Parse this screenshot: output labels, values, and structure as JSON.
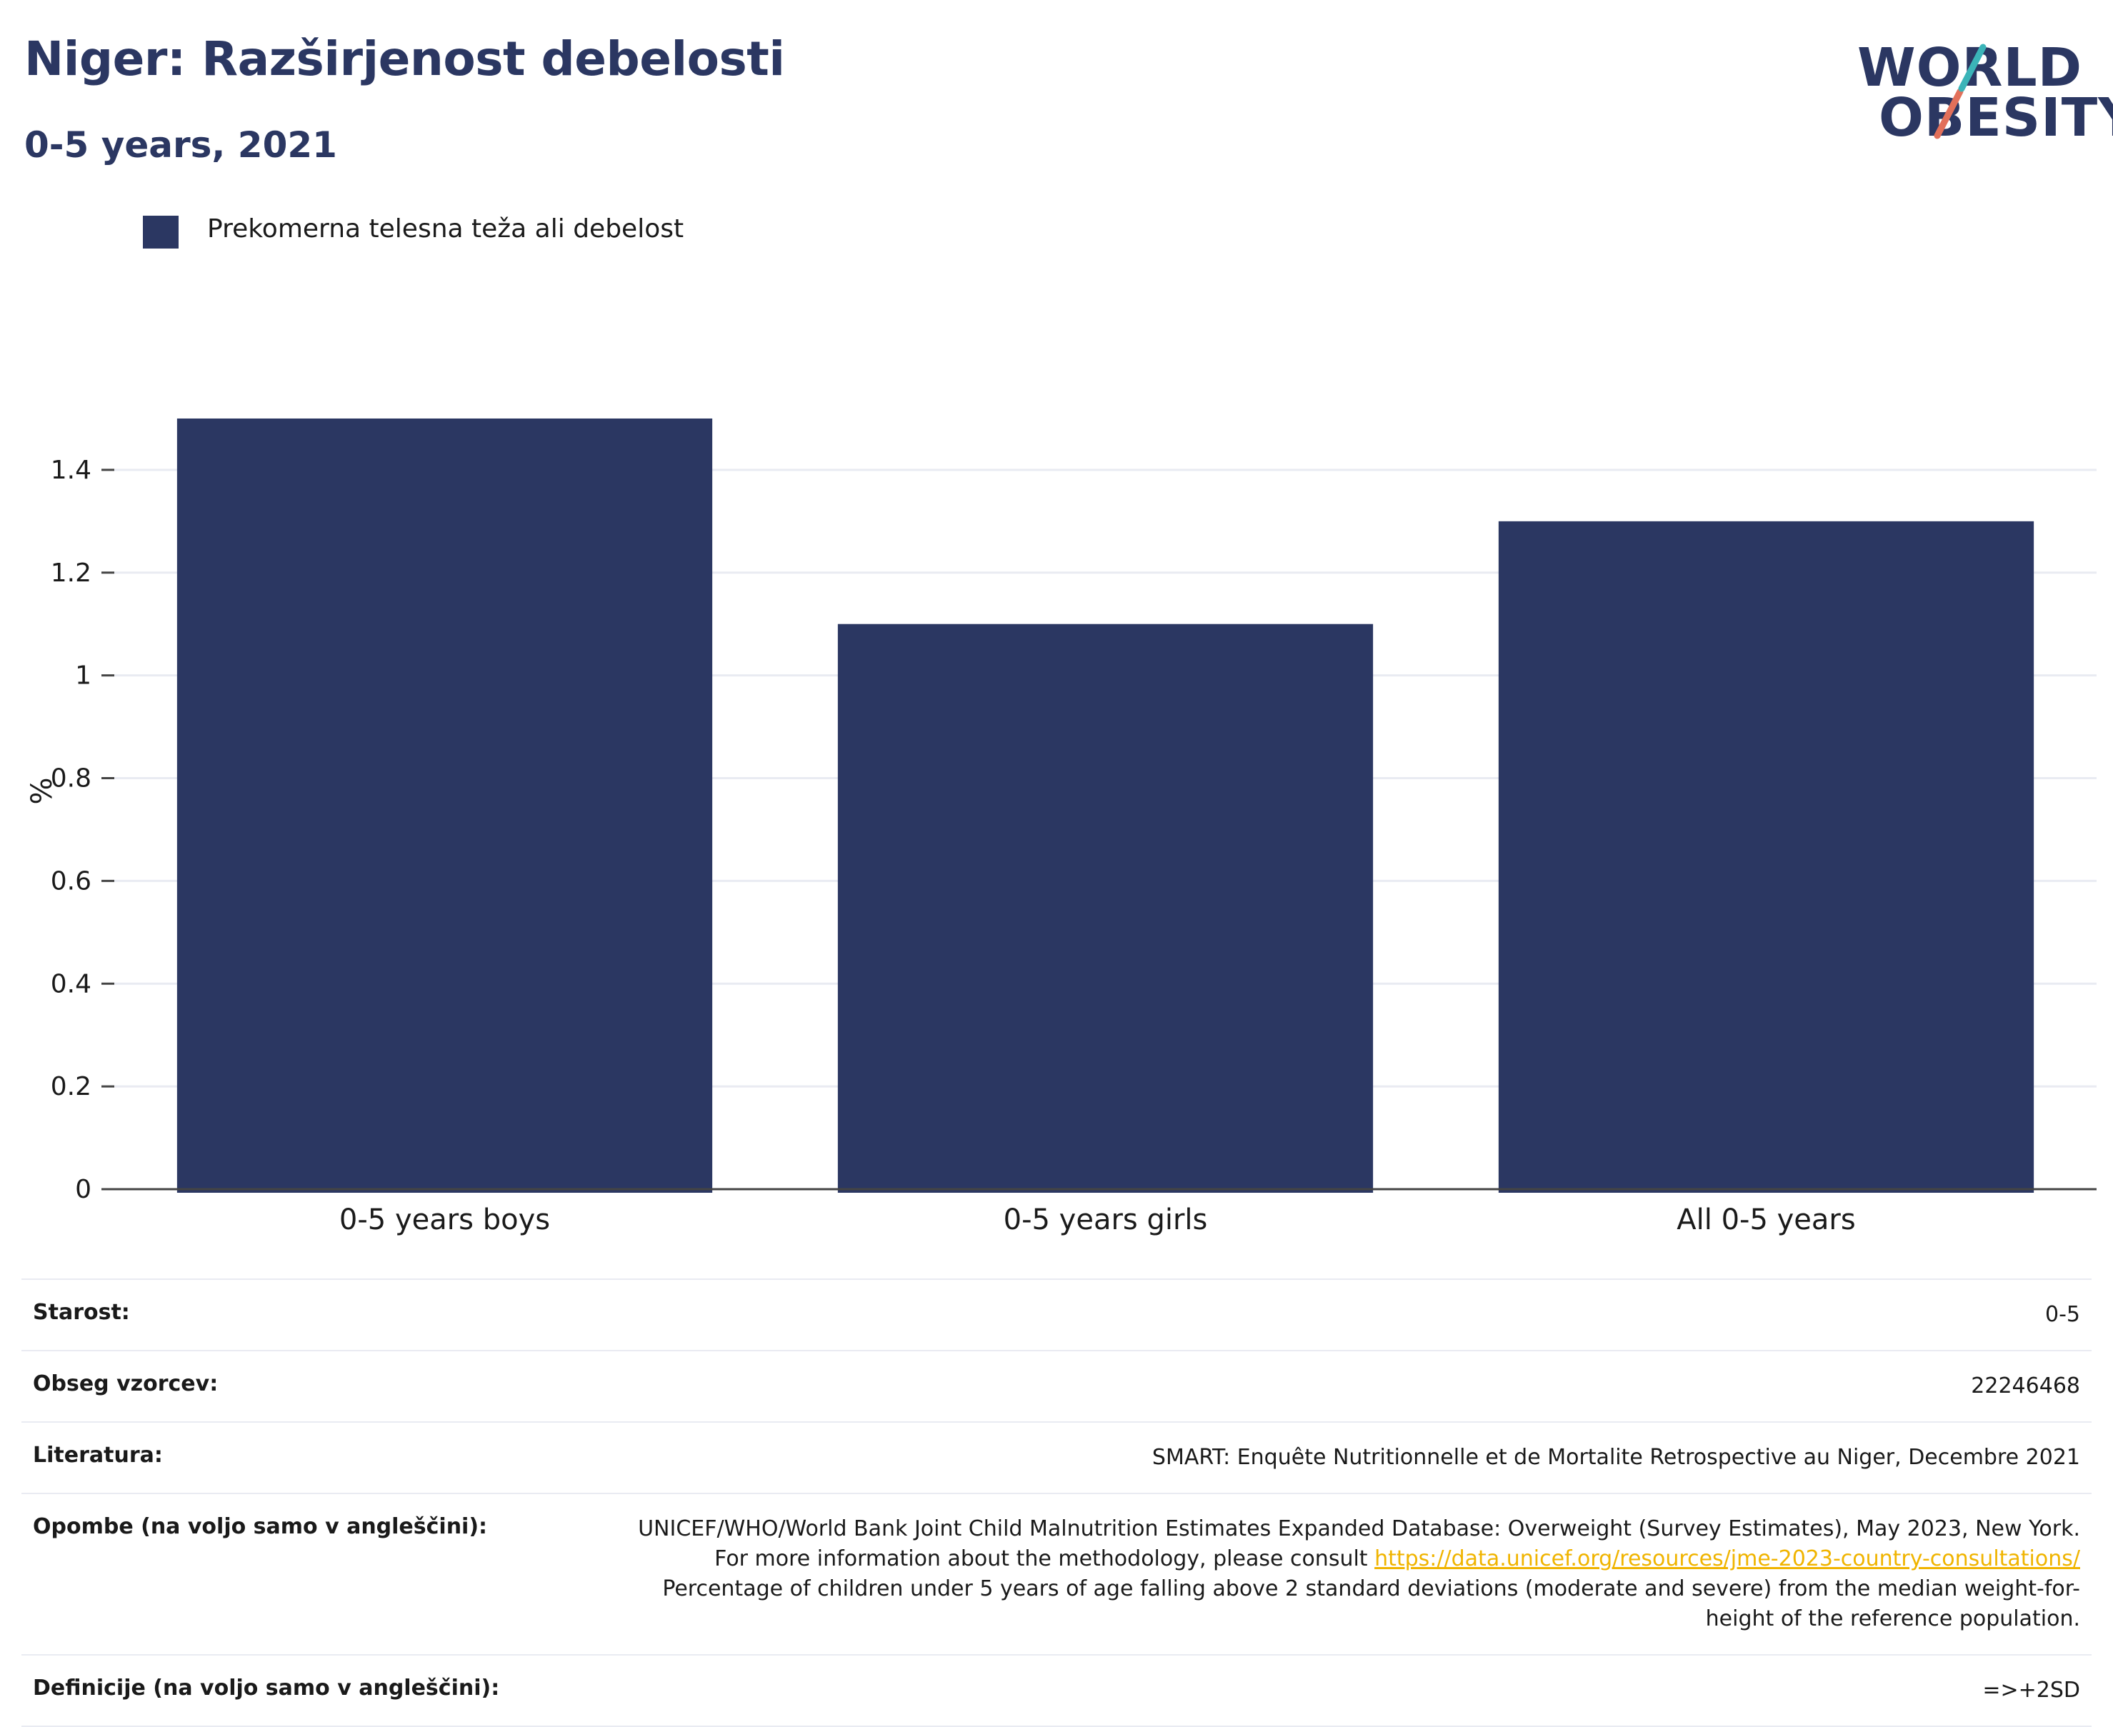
{
  "title": "Niger: Razširjenost debelosti",
  "subtitle": "0-5 years, 2021",
  "logo": {
    "line1": "WORLD",
    "line2": "OBESITY"
  },
  "colors": {
    "bar": "#2b3762",
    "title": "#2b3762",
    "grid": "#e9ebf2",
    "axis": "#444444",
    "link": "#f0b400",
    "logo_teal": "#3bb4b8",
    "logo_coral": "#e2705a"
  },
  "legend": {
    "label": "Prekomerna telesna teža ali debelost"
  },
  "chart_data": {
    "type": "bar",
    "categories": [
      "0-5 years boys",
      "0-5 years girls",
      "All 0-5 years"
    ],
    "series": [
      {
        "name": "Prekomerna telesna teža ali debelost",
        "values": [
          1.5,
          1.1,
          1.3
        ]
      }
    ],
    "ylabel": "%",
    "ylim": [
      0,
      1.55
    ],
    "yticks": [
      0,
      0.2,
      0.4,
      0.6,
      0.8,
      1,
      1.2,
      1.4
    ],
    "ytick_labels": [
      "0",
      "0.2",
      "0.4",
      "0.6",
      "0.8",
      "1",
      "1.2",
      "1.4"
    ],
    "grid": true,
    "legend_position": "top-left"
  },
  "meta": {
    "rows": [
      {
        "key": "Starost:",
        "value": "0-5"
      },
      {
        "key": "Obseg vzorcev:",
        "value": "22246468"
      },
      {
        "key": "Literatura:",
        "value": "SMART: Enquête Nutritionnelle et de Mortalite Retrospective au Niger, Decembre 2021"
      },
      {
        "key": "Opombe (na voljo samo v angleščini):"
      },
      {
        "key": "Definicije (na voljo samo v angleščini):",
        "value": "=>+2SD"
      }
    ],
    "notes": {
      "text1": "UNICEF/WHO/World Bank Joint Child Malnutrition Estimates Expanded Database: Overweight (Survey Estimates), May 2023, New York. For more information about the methodology, please consult ",
      "link": "https://data.unicef.org/resources/jme-2023-country-consultations/",
      "text2": "Percentage of children under 5 years of age falling above 2 standard deviations (moderate and severe) from the median weight-for-height of the reference population."
    }
  }
}
